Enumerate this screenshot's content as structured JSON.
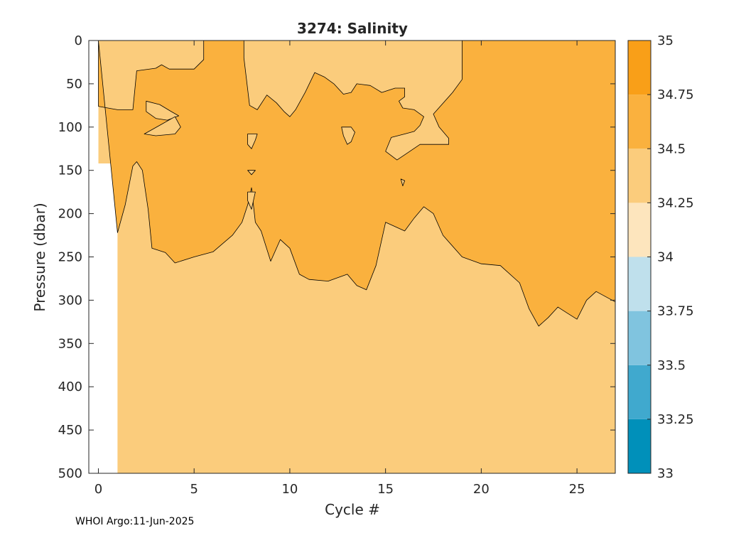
{
  "chart_data": {
    "type": "heatmap",
    "title": "3274:  Salinity",
    "xlabel": "Cycle #",
    "ylabel": "Pressure (dbar)",
    "xlim": [
      -0.5,
      27
    ],
    "ylim": [
      0,
      500
    ],
    "y_reversed": true,
    "x_ticks": [
      0,
      5,
      10,
      15,
      20,
      25
    ],
    "y_ticks": [
      0,
      50,
      100,
      150,
      200,
      250,
      300,
      350,
      400,
      450,
      500
    ],
    "data_start": {
      "x_min": 0,
      "x_full_depth_from": 1,
      "shallow_max_pressure": 142
    },
    "colorbar": {
      "levels": [
        33,
        33.25,
        33.5,
        33.75,
        34,
        34.25,
        34.5,
        34.75,
        35
      ],
      "colors": [
        "#0090BA",
        "#40A9CE",
        "#80C4DF",
        "#BFE0EC",
        "#FDE5BD",
        "#FBCC7C",
        "#FAB13E",
        "#F99F18"
      ]
    },
    "background_band": "34.25-34.5",
    "regions": {
      "band_34_5_to_34_75": {
        "upper_boundary": [
          [
            0.0,
            0
          ],
          [
            0.0,
            76
          ],
          [
            1.0,
            80
          ],
          [
            1.8,
            80
          ],
          [
            2.0,
            35
          ],
          [
            3.0,
            32
          ],
          [
            3.3,
            28
          ],
          [
            3.7,
            33
          ],
          [
            5.0,
            33
          ],
          [
            5.5,
            22
          ],
          [
            5.5,
            0
          ]
        ],
        "lower_boundary": [
          [
            1.0,
            222
          ],
          [
            1.4,
            190
          ],
          [
            1.8,
            145
          ],
          [
            2.0,
            140
          ],
          [
            2.3,
            150
          ],
          [
            2.6,
            195
          ],
          [
            2.8,
            240
          ],
          [
            3.5,
            245
          ],
          [
            4.0,
            257
          ],
          [
            5.0,
            250
          ],
          [
            6.0,
            244
          ],
          [
            7.0,
            225
          ],
          [
            7.5,
            210
          ],
          [
            7.8,
            190
          ],
          [
            8.0,
            170
          ],
          [
            8.2,
            210
          ],
          [
            8.5,
            220
          ],
          [
            9.0,
            255
          ],
          [
            9.5,
            230
          ],
          [
            10.0,
            240
          ],
          [
            10.5,
            270
          ],
          [
            11.0,
            276
          ],
          [
            12.0,
            278
          ],
          [
            13.0,
            270
          ],
          [
            13.5,
            283
          ],
          [
            14.0,
            288
          ],
          [
            14.5,
            260
          ],
          [
            15.0,
            210
          ],
          [
            16.0,
            220
          ],
          [
            16.5,
            205
          ],
          [
            17.0,
            192
          ],
          [
            17.5,
            200
          ],
          [
            18.0,
            225
          ],
          [
            19.0,
            250
          ],
          [
            20.0,
            258
          ],
          [
            21.0,
            260
          ],
          [
            22.0,
            280
          ],
          [
            22.5,
            310
          ],
          [
            23.0,
            330
          ],
          [
            23.5,
            320
          ],
          [
            24.0,
            308
          ],
          [
            24.5,
            315
          ],
          [
            25.0,
            322
          ],
          [
            25.5,
            300
          ],
          [
            26.0,
            290
          ],
          [
            27.0,
            302
          ]
        ]
      },
      "surface_fresh_region": [
        [
          7.6,
          0
        ],
        [
          7.6,
          20
        ],
        [
          7.9,
          75
        ],
        [
          8.3,
          80
        ],
        [
          8.8,
          63
        ],
        [
          9.3,
          72
        ],
        [
          9.7,
          82
        ],
        [
          10.0,
          88
        ],
        [
          10.3,
          80
        ],
        [
          10.8,
          60
        ],
        [
          11.3,
          37
        ],
        [
          11.8,
          42
        ],
        [
          12.3,
          50
        ],
        [
          12.8,
          62
        ],
        [
          13.2,
          60
        ],
        [
          13.5,
          50
        ],
        [
          14.2,
          52
        ],
        [
          14.8,
          60
        ],
        [
          15.5,
          55
        ],
        [
          16.0,
          55
        ],
        [
          16.0,
          65
        ],
        [
          15.7,
          70
        ],
        [
          15.9,
          78
        ],
        [
          16.5,
          80
        ],
        [
          17.0,
          88
        ],
        [
          16.8,
          98
        ],
        [
          16.5,
          105
        ],
        [
          16.0,
          108
        ],
        [
          15.3,
          112
        ],
        [
          15.0,
          128
        ],
        [
          15.6,
          138
        ],
        [
          16.0,
          132
        ],
        [
          16.8,
          120
        ],
        [
          17.5,
          120
        ],
        [
          18.3,
          120
        ],
        [
          18.3,
          113
        ],
        [
          17.8,
          100
        ],
        [
          17.5,
          85
        ],
        [
          18.5,
          60
        ],
        [
          19.0,
          45
        ],
        [
          19.0,
          0
        ]
      ],
      "fresh_patches": [
        [
          [
            2.5,
            70
          ],
          [
            3.2,
            74
          ],
          [
            3.8,
            82
          ],
          [
            4.2,
            87
          ],
          [
            3.6,
            92
          ],
          [
            3.0,
            90
          ],
          [
            2.5,
            82
          ]
        ],
        [
          [
            2.4,
            108
          ],
          [
            3.2,
            98
          ],
          [
            4.0,
            88
          ],
          [
            4.3,
            100
          ],
          [
            4.0,
            108
          ],
          [
            3.0,
            110
          ]
        ],
        [
          [
            7.8,
            108
          ],
          [
            8.3,
            108
          ],
          [
            8.2,
            115
          ],
          [
            8.0,
            125
          ],
          [
            7.8,
            120
          ]
        ],
        [
          [
            7.8,
            150
          ],
          [
            8.2,
            150
          ],
          [
            8.0,
            155
          ]
        ],
        [
          [
            12.7,
            100
          ],
          [
            13.2,
            100
          ],
          [
            13.4,
            106
          ],
          [
            13.2,
            117
          ],
          [
            13.0,
            120
          ],
          [
            12.8,
            110
          ]
        ],
        [
          [
            15.8,
            160
          ],
          [
            16.0,
            162
          ],
          [
            15.9,
            168
          ]
        ],
        [
          [
            7.8,
            175
          ],
          [
            8.2,
            175
          ],
          [
            8.0,
            195
          ],
          [
            7.8,
            185
          ]
        ]
      ]
    }
  },
  "footer": "WHOI Argo:11-Jun-2025"
}
